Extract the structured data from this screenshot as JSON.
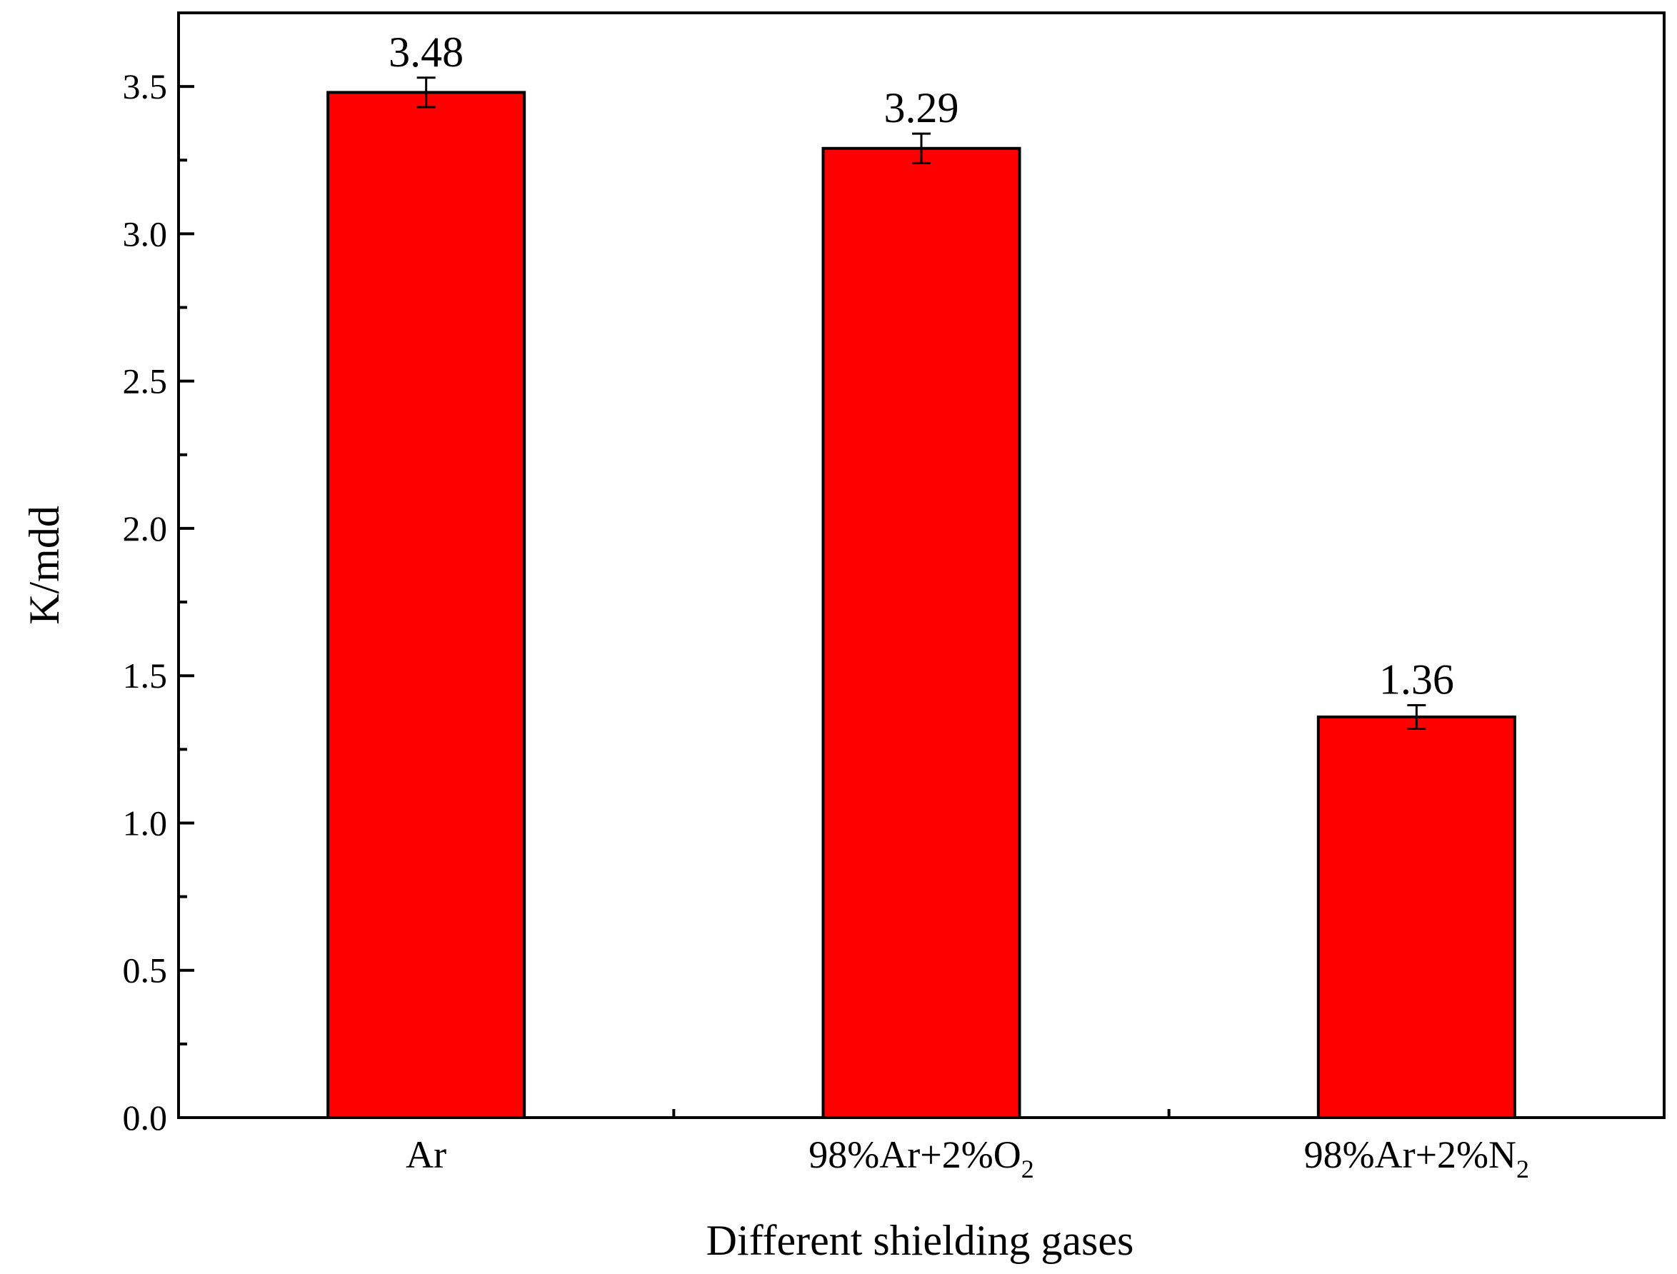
{
  "chart_data": {
    "type": "bar",
    "title": "",
    "xlabel": "Different shielding gases",
    "ylabel": "K/mdd",
    "ylim": [
      0,
      3.75
    ],
    "yticks": [
      "0.0",
      "0.5",
      "1.0",
      "1.5",
      "2.0",
      "2.5",
      "3.0",
      "3.5"
    ],
    "categories": [
      {
        "main": "98%Ar",
        "full": "Ar",
        "sub": ""
      },
      {
        "main": "98%Ar+2%O",
        "full": "98%Ar+2%O2",
        "sub": "2"
      },
      {
        "main": "98%Ar+2%N",
        "full": "98%Ar+2%N2",
        "sub": "2"
      }
    ],
    "category_labels": [
      "Ar",
      "98%Ar+2%O2",
      "98%Ar+2%N2"
    ],
    "values": [
      3.48,
      3.29,
      1.36
    ],
    "value_labels": [
      "3.48",
      "3.29",
      "1.36"
    ],
    "error": [
      0.05,
      0.05,
      0.04
    ],
    "grid": false,
    "colors": {
      "bar": "#ff0000",
      "stroke": "#000000"
    }
  }
}
